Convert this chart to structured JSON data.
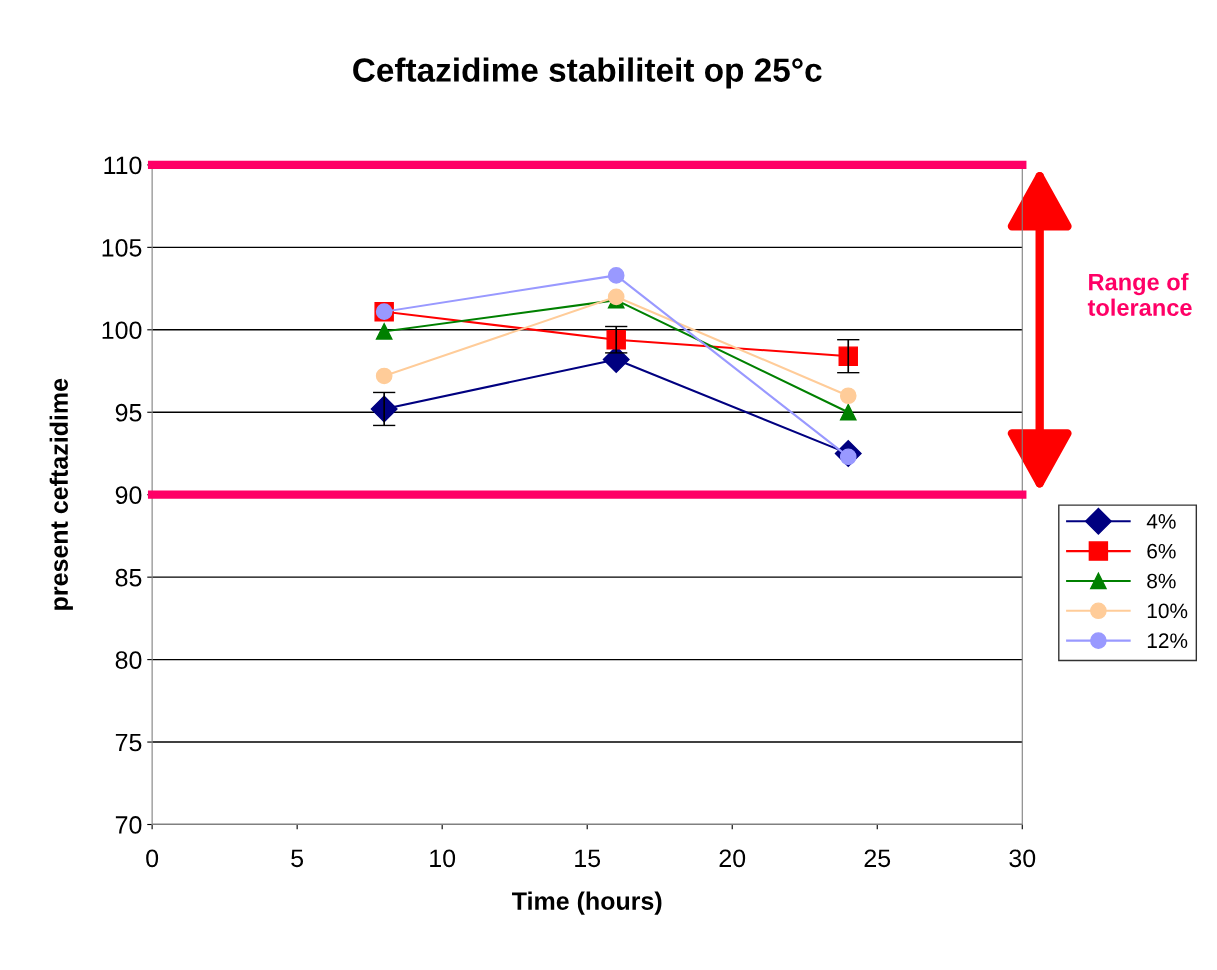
{
  "chart_data": {
    "type": "line",
    "title": "Ceftazidime stabiliteit op 25°c",
    "xlabel": "Time (hours)",
    "ylabel": "present ceftazidime",
    "x": [
      8,
      16,
      24
    ],
    "series": [
      {
        "name": "4%",
        "color": "#000080",
        "marker": "diamond",
        "values": [
          95.2,
          98.2,
          92.5
        ],
        "errors": [
          1.0,
          null,
          null
        ]
      },
      {
        "name": "6%",
        "color": "#ff0000",
        "marker": "square",
        "values": [
          101.1,
          99.4,
          98.4
        ],
        "errors": [
          null,
          0.8,
          1.0
        ]
      },
      {
        "name": "8%",
        "color": "#008000",
        "marker": "triangle",
        "values": [
          99.9,
          101.8,
          95.0
        ]
      },
      {
        "name": "10%",
        "color": "#ffcc99",
        "marker": "circle",
        "values": [
          97.2,
          102.0,
          96.0
        ]
      },
      {
        "name": "12%",
        "color": "#9999ff",
        "marker": "circle",
        "values": [
          101.1,
          103.3,
          92.3
        ]
      }
    ],
    "xlim": [
      0,
      30
    ],
    "xticks": [
      0,
      5,
      10,
      15,
      20,
      25,
      30
    ],
    "ylim": [
      70,
      110
    ],
    "yticks": [
      70,
      75,
      80,
      85,
      90,
      95,
      100,
      105,
      110
    ],
    "ref_lines": [
      {
        "axis": "y",
        "value": 90,
        "color": "#ff0066"
      },
      {
        "axis": "y",
        "value": 110,
        "color": "#ff0066"
      }
    ],
    "annotations": [
      "Range of tolerance"
    ],
    "grid": "y",
    "legend": "right",
    "line_style": "solid"
  }
}
